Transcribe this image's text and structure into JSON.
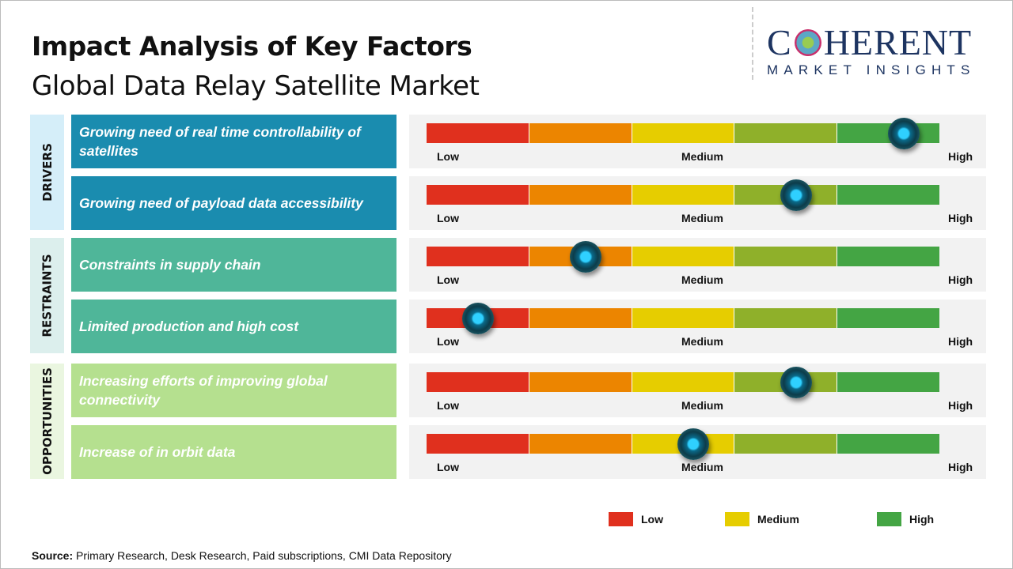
{
  "title": "Impact Analysis of Key Factors",
  "subtitle": "Global Data Relay Satellite Market",
  "logo": {
    "main_left": "C",
    "main_right": "HERENT",
    "sub": "MARKET INSIGHTS"
  },
  "colors": {
    "segments": [
      "#e0301e",
      "#ec8500",
      "#e6cd00",
      "#8fb02a",
      "#44a544"
    ],
    "drivers": "#1a8caf",
    "restraints": "#4fb699",
    "opportunities": "#b5e08f"
  },
  "chart_data": {
    "type": "gauge",
    "scale_labels": [
      "Low",
      "Medium",
      "High"
    ],
    "groups": [
      {
        "name": "DRIVERS",
        "factors": [
          {
            "label": "Growing need of real time controllability of satellites",
            "impact": 0.93
          },
          {
            "label": "Growing need of payload data accessibility",
            "impact": 0.72
          }
        ]
      },
      {
        "name": "RESTRAINTS",
        "factors": [
          {
            "label": "Constraints in supply chain",
            "impact": 0.31
          },
          {
            "label": "Limited production and high cost",
            "impact": 0.1
          }
        ]
      },
      {
        "name": "OPPORTUNITIES",
        "factors": [
          {
            "label": "Increasing efforts of improving global connectivity",
            "impact": 0.72
          },
          {
            "label": "Increase of in orbit data",
            "impact": 0.52
          }
        ]
      }
    ],
    "legend": [
      {
        "label": "Low",
        "color": "#e0301e"
      },
      {
        "label": "Medium",
        "color": "#e6cd00"
      },
      {
        "label": "High",
        "color": "#44a544"
      }
    ]
  },
  "source": {
    "label": "Source:",
    "text": " Primary Research, Desk Research, Paid subscriptions, CMI Data Repository"
  }
}
